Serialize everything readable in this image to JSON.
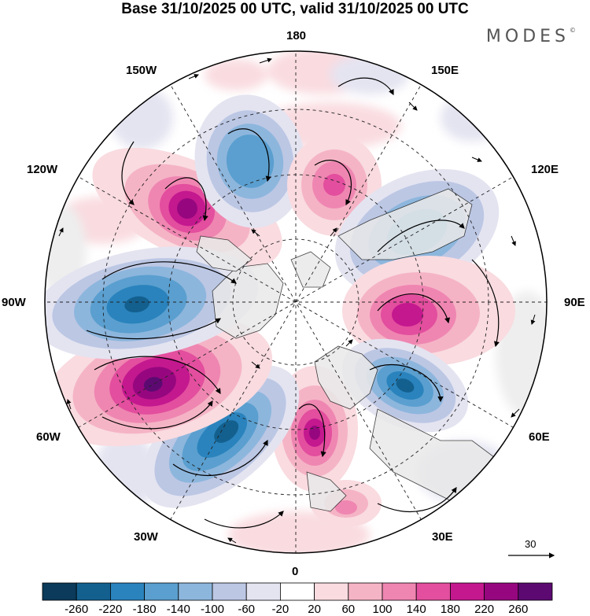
{
  "title": "Base 31/10/2025 00 UTC, valid 31/10/2025 00 UTC",
  "brand": "MODES",
  "brand_mark": "©",
  "longitude_labels": {
    "lon_180": "180",
    "lon_150w": "150W",
    "lon_150e": "150E",
    "lon_120w": "120W",
    "lon_120e": "120E",
    "lon_90w": "90W",
    "lon_90e": "90E",
    "lon_60w": "60W",
    "lon_60e": "60E",
    "lon_30w": "30W",
    "lon_30e": "30E",
    "lon_0": "0"
  },
  "reference_vector": {
    "label": "30"
  },
  "colorbar": {
    "tick_labels": [
      "-260",
      "-220",
      "-180",
      "-140",
      "-100",
      "-60",
      "-20",
      "20",
      "60",
      "100",
      "140",
      "180",
      "220",
      "260"
    ],
    "colors": [
      "#0b3a5a",
      "#13608f",
      "#2a83bd",
      "#5a9fcf",
      "#8db6dd",
      "#bcc7e4",
      "#e4e4f1",
      "#ffffff",
      "#f9dbe0",
      "#f5b4c6",
      "#ef86b1",
      "#e34e9e",
      "#c4188f",
      "#96077f",
      "#5c0a71"
    ]
  },
  "anomaly_centers": [
    {
      "name": "positive-center-120w",
      "sign": "+",
      "magnitude": 220
    },
    {
      "name": "negative-center-150w",
      "sign": "-",
      "magnitude": 140
    },
    {
      "name": "positive-center-160e",
      "sign": "+",
      "magnitude": 180
    },
    {
      "name": "negative-center-120e",
      "sign": "-",
      "magnitude": 140
    },
    {
      "name": "positive-center-90e",
      "sign": "+",
      "magnitude": 220
    },
    {
      "name": "negative-center-60e",
      "sign": "-",
      "magnitude": 220
    },
    {
      "name": "positive-center-10w",
      "sign": "+",
      "magnitude": 220
    },
    {
      "name": "negative-center-40w",
      "sign": "-",
      "magnitude": 220
    },
    {
      "name": "positive-center-70w",
      "sign": "+",
      "magnitude": 260
    },
    {
      "name": "negative-center-90w",
      "sign": "-",
      "magnitude": 220
    },
    {
      "name": "positive-center-20e",
      "sign": "+",
      "magnitude": 100
    }
  ]
}
